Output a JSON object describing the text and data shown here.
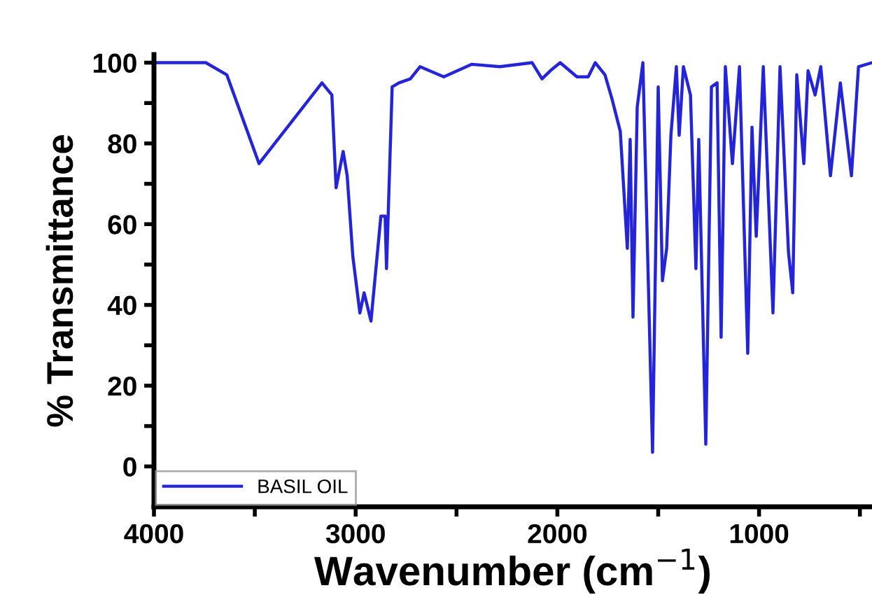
{
  "chart_data": {
    "type": "line",
    "xlabel": "Wavenumber (cm$^{−1}$)",
    "ylabel": "% Transmittance",
    "xlim": [
      4000,
      440
    ],
    "ylim": [
      -10,
      102
    ],
    "xticks": [
      4000,
      {
        "value": 3500,
        "label": null
      },
      3000,
      {
        "value": 2500,
        "label": null
      },
      2000,
      {
        "value": 1500,
        "label": null
      },
      1000,
      {
        "value": 500,
        "label": null
      }
    ],
    "yticks": [
      0,
      {
        "value": 10,
        "label": null
      },
      20,
      {
        "value": 30,
        "label": null
      },
      40,
      {
        "value": 50,
        "label": null
      },
      60,
      {
        "value": 70,
        "label": null
      },
      80,
      {
        "value": 90,
        "label": null
      },
      100
    ],
    "grid": false,
    "legend": "bottom left",
    "line_style": "solid",
    "marker": "none",
    "series": [
      {
        "name": "BASIL OIL",
        "color": "#2424d8",
        "x": [
          4000,
          3743,
          3639,
          3479,
          3167,
          3118,
          3097,
          3062,
          3042,
          3014,
          2979,
          2958,
          2924,
          2875,
          2854,
          2847,
          2819,
          2785,
          2729,
          2681,
          2563,
          2424,
          2285,
          2125,
          2076,
          2035,
          1986,
          1903,
          1847,
          1812,
          1764,
          1729,
          1688,
          1653,
          1639,
          1625,
          1604,
          1576,
          1528,
          1500,
          1479,
          1458,
          1437,
          1410,
          1396,
          1375,
          1340,
          1313,
          1299,
          1264,
          1236,
          1208,
          1188,
          1167,
          1132,
          1097,
          1056,
          1035,
          1014,
          979,
          931,
          896,
          854,
          833,
          813,
          778,
          757,
          722,
          694,
          646,
          597,
          542,
          507,
          440
        ],
        "values": [
          100,
          100,
          97,
          75,
          95,
          92,
          69,
          78,
          72,
          52,
          38,
          43,
          36,
          62,
          62,
          49,
          94,
          95,
          96,
          99,
          96.5,
          99.6,
          99,
          100,
          96,
          98,
          100,
          96.5,
          96.5,
          100,
          97,
          91,
          83,
          54,
          81,
          37,
          89,
          100,
          3.5,
          94,
          46,
          54,
          82,
          99,
          82,
          99,
          92,
          49,
          81,
          5.5,
          94,
          95,
          32,
          99,
          75,
          99,
          28,
          84,
          57,
          99,
          38,
          99,
          53,
          43,
          97,
          75,
          98,
          92,
          99,
          72,
          95,
          72,
          99,
          100
        ]
      }
    ]
  }
}
